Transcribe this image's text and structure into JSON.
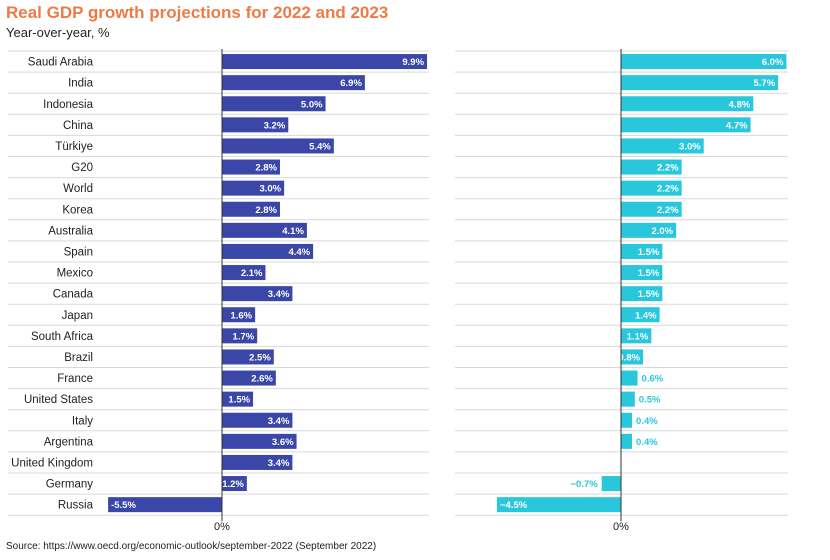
{
  "title": "Real GDP growth projections for 2022 and 2023",
  "subtitle": "Year-over-year, %",
  "source": "Source: https://www.oecd.org/economic-outlook/september-2022 (September 2022)",
  "colors": {
    "title": "#ee7a46",
    "series_2022": "#3a47a8",
    "series_2023": "#29c7dc",
    "grid": "#d9d9d9",
    "zero_line": "#333333"
  },
  "chart_data": {
    "type": "bar",
    "orientation": "horizontal",
    "categories": [
      "Saudi Arabia",
      "India",
      "Indonesia",
      "China",
      "Türkiye",
      "G20",
      "World",
      "Korea",
      "Australia",
      "Spain",
      "Mexico",
      "Canada",
      "Japan",
      "South Africa",
      "Brazil",
      "France",
      "United States",
      "Italy",
      "Argentina",
      "United Kingdom",
      "Germany",
      "Russia"
    ],
    "series": [
      {
        "name": "",
        "unit": "%",
        "values": [
          9.9,
          6.9,
          5.0,
          3.2,
          5.4,
          2.8,
          3.0,
          2.8,
          4.1,
          4.4,
          2.1,
          3.4,
          1.6,
          1.7,
          2.5,
          2.6,
          1.5,
          3.4,
          3.6,
          3.4,
          1.2,
          -5.5
        ],
        "labels": [
          "9.9%",
          "6.9%",
          "5.0%",
          "3.2%",
          "5.4%",
          "2.8%",
          "3.0%",
          "2.8%",
          "4.1%",
          "4.4%",
          "2.1%",
          "3.4%",
          "1.6%",
          "1.7%",
          "2.5%",
          "2.6%",
          "1.5%",
          "3.4%",
          "3.6%",
          "3.4%",
          "1.2%",
          "-5.5%"
        ]
      },
      {
        "name": "",
        "unit": "%",
        "values": [
          6.0,
          5.7,
          4.8,
          4.7,
          3.0,
          2.2,
          2.2,
          2.2,
          2.0,
          1.5,
          1.5,
          1.5,
          1.4,
          1.1,
          0.8,
          0.6,
          0.5,
          0.4,
          0.4,
          null,
          -0.7,
          -4.5
        ],
        "labels": [
          "6.0%",
          "5.7%",
          "4.8%",
          "4.7%",
          "3.0%",
          "2.2%",
          "2.2%",
          "2.2%",
          "2.0%",
          "1.5%",
          "1.5%",
          "1.5%",
          "1.4%",
          "1.1%",
          "0.8%",
          "0.6%",
          "0.5%",
          "0.4%",
          "0.4%",
          "",
          "−0.7%",
          "−4.5%"
        ]
      }
    ],
    "zero_tick_label": "0%",
    "xlim": [
      [
        -5.5,
        9.9
      ],
      [
        -4.5,
        6.0
      ]
    ],
    "grid": true
  }
}
